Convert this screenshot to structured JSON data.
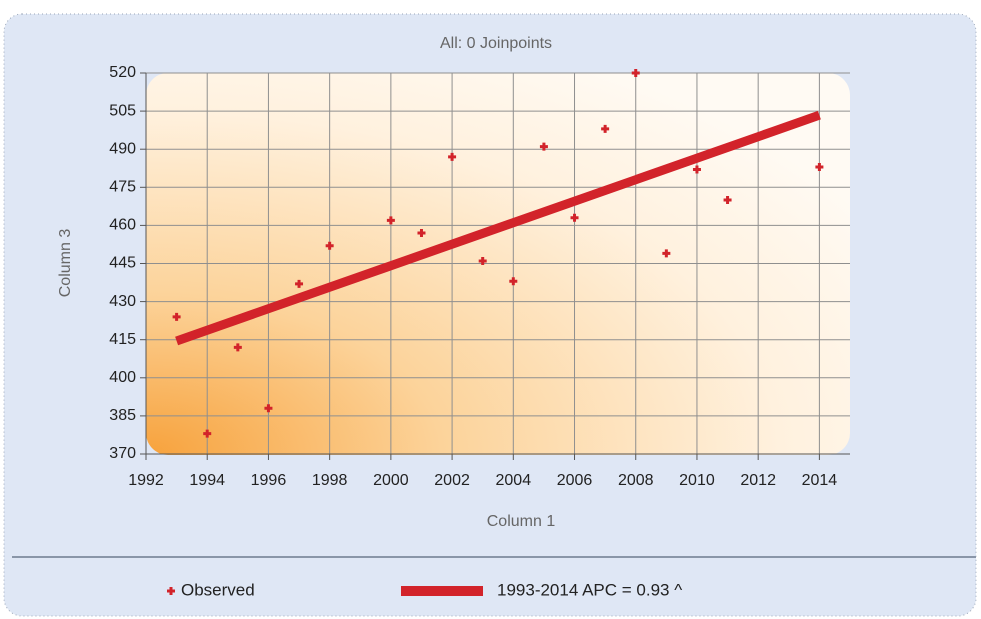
{
  "chart_data": {
    "type": "scatter",
    "title": "All: 0 Joinpoints",
    "x_label": "Column 1",
    "y_label": "Column 3",
    "xlim": [
      1992,
      2015
    ],
    "xticks": [
      1992,
      1994,
      1996,
      1998,
      2000,
      2002,
      2004,
      2006,
      2008,
      2010,
      2012,
      2014
    ],
    "ylim": [
      370,
      520
    ],
    "yticks": [
      370,
      385,
      400,
      415,
      430,
      445,
      460,
      475,
      490,
      505,
      520
    ],
    "grid": true,
    "series": [
      {
        "name": "Observed",
        "type": "scatter",
        "color": "#d2232a",
        "x": [
          1993,
          1994,
          1995,
          1996,
          1997,
          1998,
          2000,
          2001,
          2002,
          2003,
          2004,
          2005,
          2006,
          2007,
          2008,
          2009,
          2010,
          2011,
          2014
        ],
        "values": [
          424,
          378,
          412,
          388,
          437,
          452,
          462,
          457,
          487,
          446,
          438,
          491,
          463,
          498,
          520,
          449,
          482,
          470,
          483
        ]
      },
      {
        "name": "1993-2014 APC = 0.93 ^",
        "type": "line",
        "color": "#d2232a",
        "x": [
          1993,
          2014
        ],
        "values": [
          414.5,
          503.4
        ]
      }
    ]
  }
}
